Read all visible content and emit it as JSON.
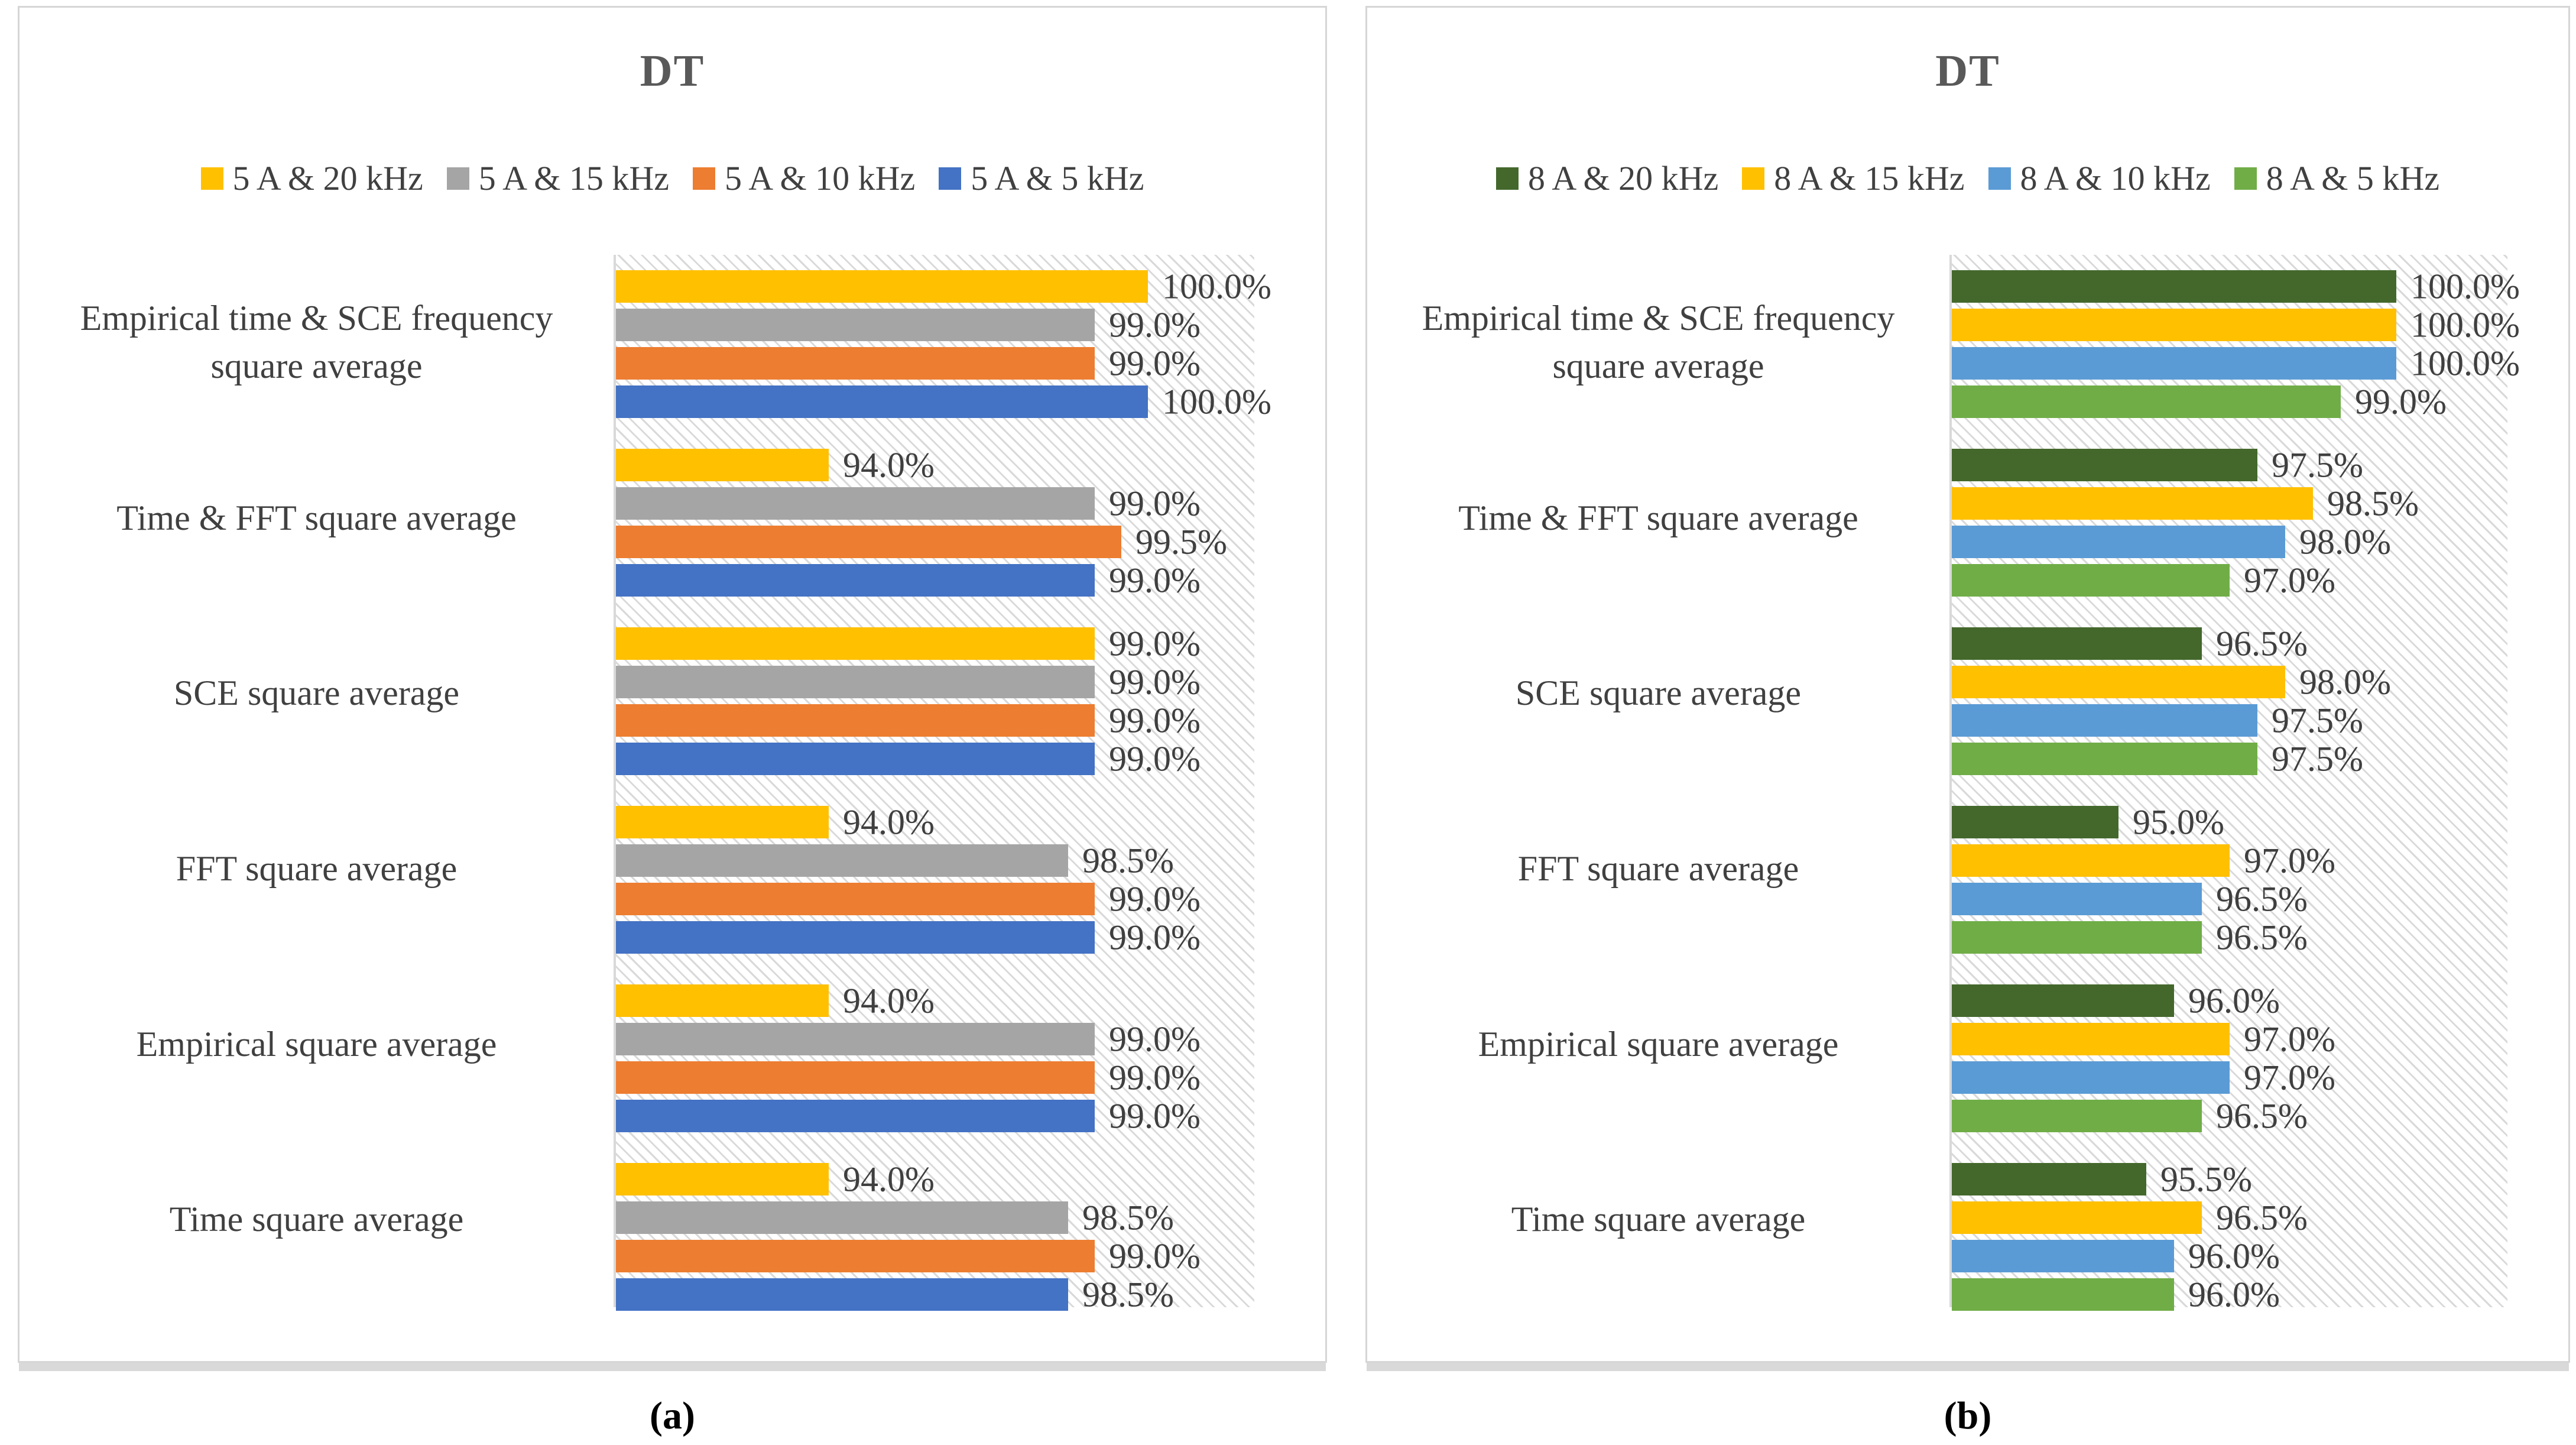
{
  "captions": [
    "(a)",
    "(b)"
  ],
  "chart_data": [
    {
      "type": "bar",
      "orientation": "horizontal",
      "title": "DT",
      "caption": "(a)",
      "xlim": [
        90,
        102
      ],
      "data_max": 100,
      "value_suffix": "%",
      "legend_position": "top",
      "grid": false,
      "plot_background": "diagonal-hatch",
      "categories": [
        "Empirical time & SCE frequency square average",
        "Time & FFT square average",
        "SCE square average",
        "FFT square average",
        "Empirical square average",
        "Time square average"
      ],
      "series": [
        {
          "name": "5 A & 20 kHz",
          "color": "#FFC000",
          "values": [
            100.0,
            94.0,
            99.0,
            94.0,
            94.0,
            94.0
          ]
        },
        {
          "name": "5 A & 15 kHz",
          "color": "#A5A5A5",
          "values": [
            99.0,
            99.0,
            99.0,
            98.5,
            99.0,
            98.5
          ]
        },
        {
          "name": "5 A & 10 kHz",
          "color": "#ED7D31",
          "values": [
            99.0,
            99.5,
            99.0,
            99.0,
            99.0,
            99.0
          ]
        },
        {
          "name": "5 A & 5 kHz",
          "color": "#4472C4",
          "values": [
            100.0,
            99.0,
            99.0,
            99.0,
            99.0,
            98.5
          ]
        }
      ]
    },
    {
      "type": "bar",
      "orientation": "horizontal",
      "title": "DT",
      "caption": "(b)",
      "xlim": [
        92,
        102
      ],
      "data_max": 100,
      "value_suffix": "%",
      "legend_position": "top",
      "grid": false,
      "plot_background": "diagonal-hatch",
      "categories": [
        "Empirical time & SCE frequency square average",
        "Time & FFT square average",
        "SCE square average",
        "FFT square average",
        "Empirical square average",
        "Time square average"
      ],
      "series": [
        {
          "name": "8 A & 20 kHz",
          "color": "#44682C",
          "values": [
            100.0,
            97.5,
            96.5,
            95.0,
            96.0,
            95.5
          ]
        },
        {
          "name": "8 A & 15 kHz",
          "color": "#FFC000",
          "values": [
            100.0,
            98.5,
            98.0,
            97.0,
            97.0,
            96.5
          ]
        },
        {
          "name": "8 A & 10 kHz",
          "color": "#5B9BD5",
          "values": [
            100.0,
            98.0,
            97.5,
            96.5,
            97.0,
            96.0
          ]
        },
        {
          "name": "8 A & 5 kHz",
          "color": "#70AD47",
          "values": [
            99.0,
            97.0,
            97.5,
            96.5,
            96.5,
            96.0
          ]
        }
      ]
    }
  ],
  "style": {
    "title_color": "#595959",
    "text_color": "#404040",
    "value_label_color": "#3F3F3F",
    "axis_line_color": "#D9D9D9",
    "panel_border_color": "#D6D6D6",
    "panel_shadow_color": "#D9D9D9",
    "hatch_line_color": "#D9D9D9"
  }
}
